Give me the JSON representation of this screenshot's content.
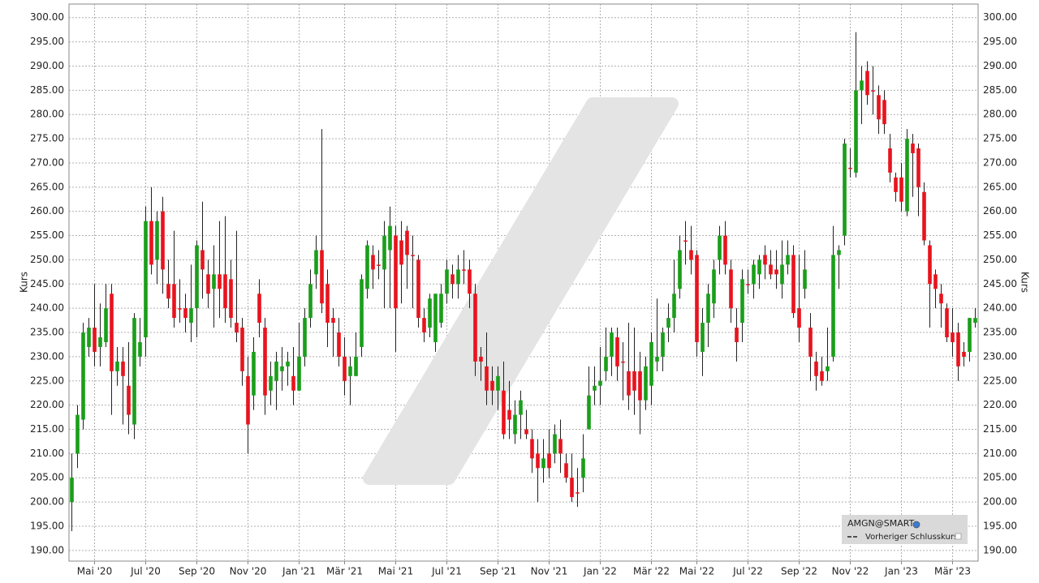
{
  "chart_data": {
    "type": "candlestick",
    "y_label": "Kurs",
    "categories": [
      null,
      null,
      null,
      null,
      "Mai '20",
      null,
      null,
      null,
      null,
      null,
      null,
      null,
      null,
      "Jul '20",
      null,
      null,
      null,
      null,
      null,
      null,
      null,
      null,
      "Sep '20",
      null,
      null,
      null,
      null,
      null,
      null,
      null,
      null,
      "Nov '20",
      null,
      null,
      null,
      null,
      null,
      null,
      null,
      null,
      "Jan '21",
      null,
      null,
      null,
      null,
      null,
      null,
      null,
      "Mär '21",
      null,
      null,
      null,
      null,
      null,
      null,
      null,
      null,
      "Mai '21",
      null,
      null,
      null,
      null,
      null,
      null,
      null,
      null,
      "Jul '21",
      null,
      null,
      null,
      null,
      null,
      null,
      null,
      null,
      "Sep '21",
      null,
      null,
      null,
      null,
      null,
      null,
      null,
      null,
      "Nov '21",
      null,
      null,
      null,
      null,
      null,
      null,
      null,
      null,
      "Jan '22",
      null,
      null,
      null,
      null,
      null,
      null,
      null,
      null,
      "Mär '22",
      null,
      null,
      null,
      null,
      null,
      null,
      null,
      "Mai '22",
      null,
      null,
      null,
      null,
      null,
      null,
      null,
      null,
      "Jul '22",
      null,
      null,
      null,
      null,
      null,
      null,
      null,
      null,
      "Sep '22",
      null,
      null,
      null,
      null,
      null,
      null,
      null,
      null,
      "Nov '22",
      null,
      null,
      null,
      null,
      null,
      null,
      null,
      null,
      "Jan '23",
      null,
      null,
      null,
      null,
      null,
      null,
      null,
      null,
      "Mär '23",
      null,
      null,
      null,
      null
    ],
    "series": [
      {
        "name": "AMGN@SMART",
        "up_color": "#1a9e1a",
        "down_color": "#e8141e",
        "open": [
          200,
          210,
          217,
          232,
          236,
          232,
          233,
          243,
          227,
          229,
          224,
          216,
          230,
          234,
          258,
          250,
          260,
          245,
          245,
          240,
          240,
          237,
          240,
          252,
          247,
          244,
          247,
          247,
          246,
          237,
          236,
          226,
          222,
          243,
          236,
          223,
          225,
          227,
          228,
          226,
          223,
          230,
          238,
          247,
          252,
          245,
          238,
          235,
          230,
          226,
          226,
          232,
          244,
          251,
          249,
          248,
          252,
          255,
          254,
          256,
          251,
          250,
          238,
          236,
          233,
          237,
          243,
          247,
          245,
          248,
          248,
          243,
          230,
          228,
          225,
          223,
          223,
          219,
          214,
          218,
          215,
          213,
          210,
          207,
          210,
          210,
          213,
          208,
          205,
          202,
          205,
          215,
          223,
          224,
          227,
          230,
          234,
          229,
          227,
          227,
          227,
          221,
          224,
          229,
          230,
          236,
          238,
          244,
          254,
          252,
          251,
          231,
          237,
          241,
          250,
          255,
          248,
          236,
          237,
          245,
          245,
          247,
          251,
          249,
          248,
          245,
          249,
          251,
          240,
          244,
          236,
          229,
          227,
          227,
          230,
          251,
          255,
          269,
          268,
          285,
          289,
          285,
          284,
          283,
          273,
          267,
          267,
          260,
          274,
          273,
          264,
          253,
          247,
          243,
          240,
          235,
          235,
          231,
          231,
          237
        ],
        "high": [
          210,
          220,
          237,
          238,
          245,
          241,
          245,
          245,
          232,
          232,
          233,
          239,
          238,
          261,
          265,
          260,
          263,
          250,
          256,
          246,
          243,
          249,
          254,
          262,
          250,
          253,
          258,
          259,
          250,
          256,
          238,
          230,
          234,
          246,
          238,
          229,
          231,
          232,
          231,
          232,
          237,
          240,
          248,
          255,
          277,
          248,
          240,
          238,
          234,
          230,
          235,
          247,
          254,
          253,
          252,
          258,
          261,
          257,
          258,
          257,
          255,
          251,
          240,
          243,
          243,
          245,
          250,
          249,
          251,
          252,
          250,
          245,
          232,
          235,
          228,
          228,
          229,
          225,
          221,
          223,
          219,
          215,
          213,
          213,
          215,
          216,
          217,
          210,
          210,
          207,
          214,
          228,
          228,
          232,
          236,
          236,
          236,
          233,
          237,
          236,
          231,
          230,
          235,
          242,
          236,
          241,
          250,
          255,
          258,
          257,
          252,
          240,
          245,
          250,
          257,
          258,
          250,
          240,
          248,
          248,
          250,
          251,
          253,
          252,
          252,
          254,
          254,
          253,
          251,
          252,
          239,
          231,
          230,
          236,
          257,
          253,
          275,
          273,
          297,
          290,
          291,
          290,
          286,
          285,
          276,
          268,
          270,
          277,
          276,
          274,
          266,
          254,
          248,
          245,
          241,
          240,
          237,
          233,
          238,
          240
        ],
        "low": [
          194,
          207,
          215,
          230,
          228,
          228,
          232,
          218,
          224,
          216,
          214,
          213,
          228,
          230,
          247,
          245,
          243,
          240,
          236,
          237,
          235,
          233,
          234,
          242,
          240,
          236,
          238,
          237,
          236,
          233,
          224,
          210,
          219,
          234,
          218,
          220,
          219,
          223,
          224,
          220,
          223,
          228,
          236,
          244,
          239,
          232,
          230,
          228,
          222,
          220,
          226,
          230,
          242,
          244,
          246,
          240,
          240,
          231,
          241,
          244,
          240,
          236,
          233,
          234,
          231,
          236,
          241,
          242,
          242,
          245,
          240,
          226,
          225,
          220,
          220,
          219,
          213,
          213,
          212,
          213,
          213,
          206,
          200,
          204,
          205,
          208,
          206,
          204,
          200,
          199,
          202,
          215,
          220,
          220,
          225,
          226,
          225,
          221,
          219,
          218,
          214,
          219,
          220,
          227,
          227,
          233,
          235,
          242,
          249,
          247,
          230,
          226,
          232,
          238,
          247,
          247,
          237,
          229,
          233,
          243,
          242,
          244,
          246,
          246,
          244,
          242,
          247,
          238,
          233,
          242,
          225,
          223,
          224,
          225,
          229,
          244,
          253,
          267,
          267,
          278,
          282,
          280,
          276,
          276,
          266,
          262,
          260,
          259,
          263,
          259,
          253,
          236,
          240,
          236,
          233,
          230,
          225,
          228,
          229,
          236
        ],
        "close": [
          205,
          218,
          235,
          236,
          231,
          234,
          240,
          227,
          229,
          226,
          218,
          238,
          233,
          258,
          249,
          258,
          248,
          242,
          238,
          240,
          238,
          240,
          253,
          248,
          243,
          247,
          244,
          240,
          238,
          235,
          227,
          216,
          231,
          237,
          222,
          226,
          229,
          228,
          229,
          223,
          230,
          238,
          245,
          252,
          241,
          237,
          237,
          230,
          225,
          228,
          230,
          246,
          253,
          248,
          249,
          255,
          257,
          240,
          249,
          251,
          251,
          238,
          235,
          242,
          243,
          243,
          248,
          245,
          248,
          248,
          243,
          229,
          229,
          223,
          223,
          226,
          214,
          217,
          218,
          221,
          214,
          209,
          207,
          209,
          207,
          214,
          210,
          205,
          201,
          202,
          209,
          222,
          224,
          225,
          230,
          235,
          228,
          229,
          222,
          223,
          221,
          228,
          233,
          230,
          235,
          238,
          243,
          252,
          254,
          250,
          233,
          237,
          243,
          248,
          255,
          249,
          240,
          233,
          246,
          245,
          249,
          250,
          249,
          247,
          247,
          249,
          251,
          239,
          236,
          248,
          230,
          226,
          225,
          228,
          251,
          252,
          274,
          269,
          285,
          287,
          284,
          285,
          279,
          278,
          268,
          264,
          262,
          275,
          272,
          265,
          254,
          245,
          244,
          241,
          234,
          233,
          228,
          230,
          238,
          238
        ]
      }
    ],
    "legend_extra": "Vorheriger Schlusskurs",
    "ylim": [
      187.8,
      302.8
    ],
    "yticks": [
      {
        "value": 190,
        "label": "190.00"
      },
      {
        "value": 195,
        "label": "195.00"
      },
      {
        "value": 200,
        "label": "200.00"
      },
      {
        "value": 205,
        "label": "205.00"
      },
      {
        "value": 210,
        "label": "210.00"
      },
      {
        "value": 215,
        "label": "215.00"
      },
      {
        "value": 220,
        "label": "220.00"
      },
      {
        "value": 225,
        "label": "225.00"
      },
      {
        "value": 230,
        "label": "230.00"
      },
      {
        "value": 235,
        "label": "235.00"
      },
      {
        "value": 240,
        "label": "240.00"
      },
      {
        "value": 245,
        "label": "245.00"
      },
      {
        "value": 250,
        "label": "250.00"
      },
      {
        "value": 255,
        "label": "255.00"
      },
      {
        "value": 260,
        "label": "260.00"
      },
      {
        "value": 265,
        "label": "265.00"
      },
      {
        "value": 270,
        "label": "270.00"
      },
      {
        "value": 275,
        "label": "275.00"
      },
      {
        "value": 280,
        "label": "280.00"
      },
      {
        "value": 285,
        "label": "285.00"
      },
      {
        "value": 290,
        "label": "290.00"
      },
      {
        "value": 295,
        "label": "295.00"
      },
      {
        "value": 300,
        "label": "300.00"
      }
    ],
    "grid": true
  }
}
